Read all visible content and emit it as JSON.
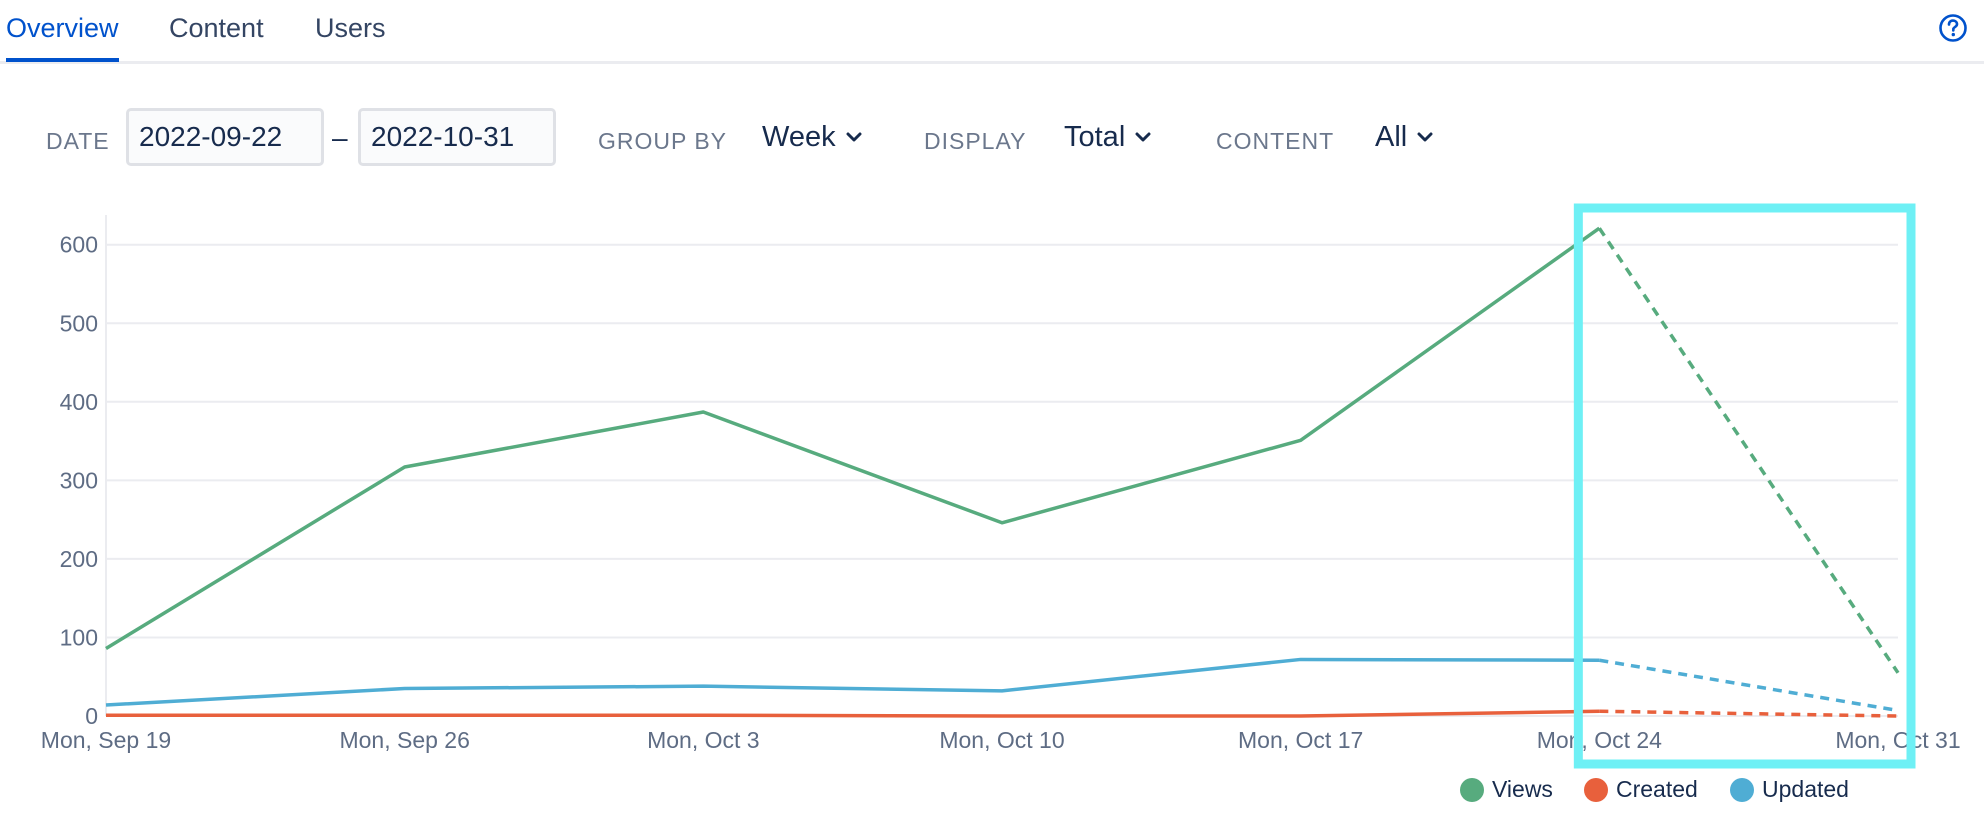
{
  "tabs": [
    {
      "label": "Overview",
      "active": true
    },
    {
      "label": "Content",
      "active": false
    },
    {
      "label": "Users",
      "active": false
    }
  ],
  "filters": {
    "date_label": "DATE",
    "date_from": "2022-09-22",
    "date_separator": "–",
    "date_to": "2022-10-31",
    "group_by_label": "GROUP BY",
    "group_by_value": "Week",
    "display_label": "DISPLAY",
    "display_value": "Total",
    "content_label": "CONTENT",
    "content_value": "All"
  },
  "icons": {
    "help": "help-icon",
    "chevron": "chevron-down-icon"
  },
  "colors": {
    "accent": "#0052cc",
    "views": "#57ab7e",
    "created": "#e8603c",
    "updated": "#4fadd4",
    "highlight": "#6ef0f5"
  },
  "chart_data": {
    "type": "line",
    "categories": [
      "Mon, Sep 19",
      "Mon, Sep 26",
      "Mon, Oct 3",
      "Mon, Oct 10",
      "Mon, Oct 17",
      "Mon, Oct 24",
      "Mon, Oct 31"
    ],
    "series": [
      {
        "name": "Views",
        "values": [
          86,
          317,
          387,
          246,
          351,
          621,
          55
        ],
        "color": "#57ab7e"
      },
      {
        "name": "Created",
        "values": [
          1,
          1,
          1,
          0,
          0,
          6,
          0
        ],
        "color": "#e8603c"
      },
      {
        "name": "Updated",
        "values": [
          14,
          35,
          38,
          32,
          72,
          71,
          7
        ],
        "color": "#4fadd4"
      }
    ],
    "dashed_from_index": 5,
    "highlight_category_range": [
      "Mon, Oct 24",
      "Mon, Oct 31"
    ],
    "yticks": [
      0,
      100,
      200,
      300,
      400,
      500,
      600
    ],
    "ylim": [
      0,
      620
    ],
    "grid": true,
    "legend_position": "bottom-right",
    "title": "",
    "xlabel": "",
    "ylabel": ""
  }
}
